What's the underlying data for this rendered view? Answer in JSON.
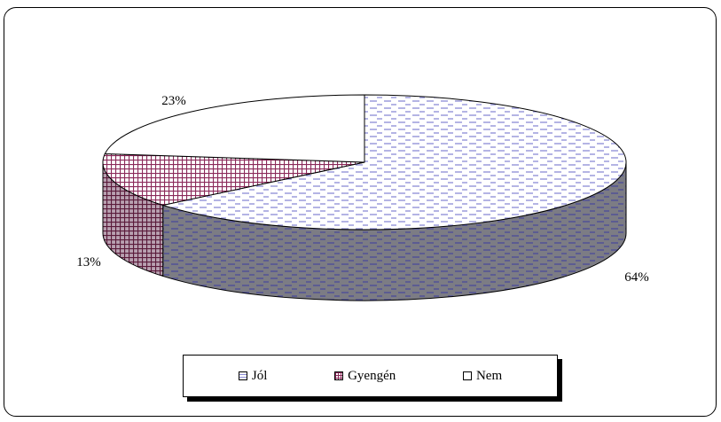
{
  "chart_data": {
    "type": "pie",
    "title": "",
    "categories": [
      "Jól",
      "Gyengén",
      "Nem"
    ],
    "values": [
      64,
      13,
      23
    ],
    "labels": [
      "64%",
      "13%",
      "23%"
    ],
    "three_d": true,
    "legend_position": "bottom",
    "colors": {
      "Jól": "#c8c8f0",
      "Gyengén": "#8b2a5a",
      "Nem": "#ffffff",
      "jol_side": "#7a7a8a"
    }
  },
  "legend": {
    "items": [
      {
        "label": "Jól",
        "swatch": "dashes"
      },
      {
        "label": "Gyengén",
        "swatch": "grid"
      },
      {
        "label": "Nem",
        "swatch": "plain"
      }
    ]
  }
}
